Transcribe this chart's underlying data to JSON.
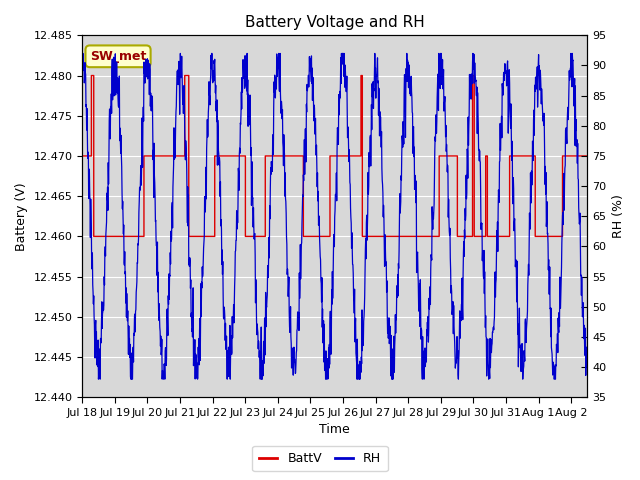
{
  "title": "Battery Voltage and RH",
  "xlabel": "Time",
  "ylabel_left": "Battery (V)",
  "ylabel_right": "RH (%)",
  "annotation_text": "SW_met",
  "annotation_facecolor": "#ffffcc",
  "annotation_edgecolor": "#aaaa00",
  "annotation_textcolor": "#990000",
  "left_ylim": [
    12.44,
    12.485
  ],
  "right_ylim": [
    35,
    95
  ],
  "left_yticks": [
    12.44,
    12.445,
    12.45,
    12.455,
    12.46,
    12.465,
    12.47,
    12.475,
    12.48,
    12.485
  ],
  "right_yticks": [
    35,
    40,
    45,
    50,
    55,
    60,
    65,
    70,
    75,
    80,
    85,
    90,
    95
  ],
  "batt_color": "#dd0000",
  "rh_color": "#0000cc",
  "legend_labels": [
    "BattV",
    "RH"
  ],
  "plot_bg": "#d8d8d8",
  "fig_bg": "#ffffff",
  "grid_color": "#ffffff",
  "title_fontsize": 11,
  "label_fontsize": 9,
  "tick_fontsize": 8,
  "xtick_positions": [
    0,
    1,
    2,
    3,
    4,
    5,
    6,
    7,
    8,
    9,
    10,
    11,
    12,
    13,
    14,
    15
  ],
  "xtick_labels": [
    "Jul 18",
    "Jul 19",
    "Jul 20",
    "Jul 21",
    "Jul 22",
    "Jul 23",
    "Jul 24",
    "Jul 25",
    "Jul 26",
    "Jul 27",
    "Jul 28",
    "Jul 29",
    "Jul 30",
    "Jul 31",
    "Aug 1",
    "Aug 2"
  ],
  "xlim": [
    0,
    15.5
  ]
}
